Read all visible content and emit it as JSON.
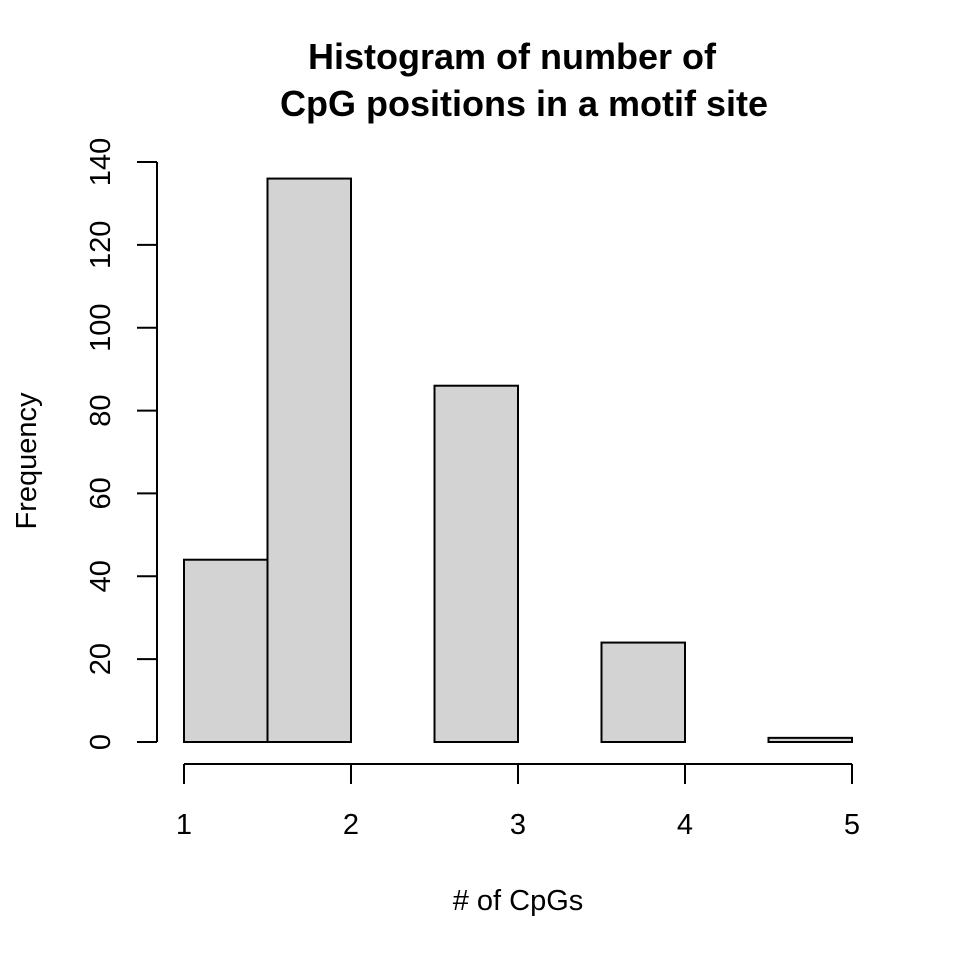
{
  "chart_data": {
    "type": "bar",
    "title": [
      "Histogram of number of",
      "CpG positions in a motif site"
    ],
    "xlabel": "# of CpGs",
    "ylabel": "Frequency",
    "bins": [
      {
        "start": 1.0,
        "end": 1.5,
        "count": 44
      },
      {
        "start": 1.5,
        "end": 2.0,
        "count": 136
      },
      {
        "start": 2.0,
        "end": 2.5,
        "count": 0
      },
      {
        "start": 2.5,
        "end": 3.0,
        "count": 86
      },
      {
        "start": 3.0,
        "end": 3.5,
        "count": 0
      },
      {
        "start": 3.5,
        "end": 4.0,
        "count": 24
      },
      {
        "start": 4.0,
        "end": 4.5,
        "count": 0
      },
      {
        "start": 4.5,
        "end": 5.0,
        "count": 1
      }
    ],
    "x_ticks": [
      {
        "value": 1,
        "label": "1"
      },
      {
        "value": 2,
        "label": "2"
      },
      {
        "value": 3,
        "label": "3"
      },
      {
        "value": 4,
        "label": "4"
      },
      {
        "value": 5,
        "label": "5"
      }
    ],
    "y_ticks": [
      {
        "value": 0,
        "label": "0"
      },
      {
        "value": 20,
        "label": "20"
      },
      {
        "value": 40,
        "label": "40"
      },
      {
        "value": 60,
        "label": "60"
      },
      {
        "value": 80,
        "label": "80"
      },
      {
        "value": 100,
        "label": "100"
      },
      {
        "value": 120,
        "label": "120"
      },
      {
        "value": 140,
        "label": "140"
      }
    ],
    "xlim": [
      1,
      5
    ],
    "ylim": [
      0,
      140
    ],
    "grid": false,
    "bar_color": "#d3d3d3",
    "bar_edge_color": "#000000"
  }
}
